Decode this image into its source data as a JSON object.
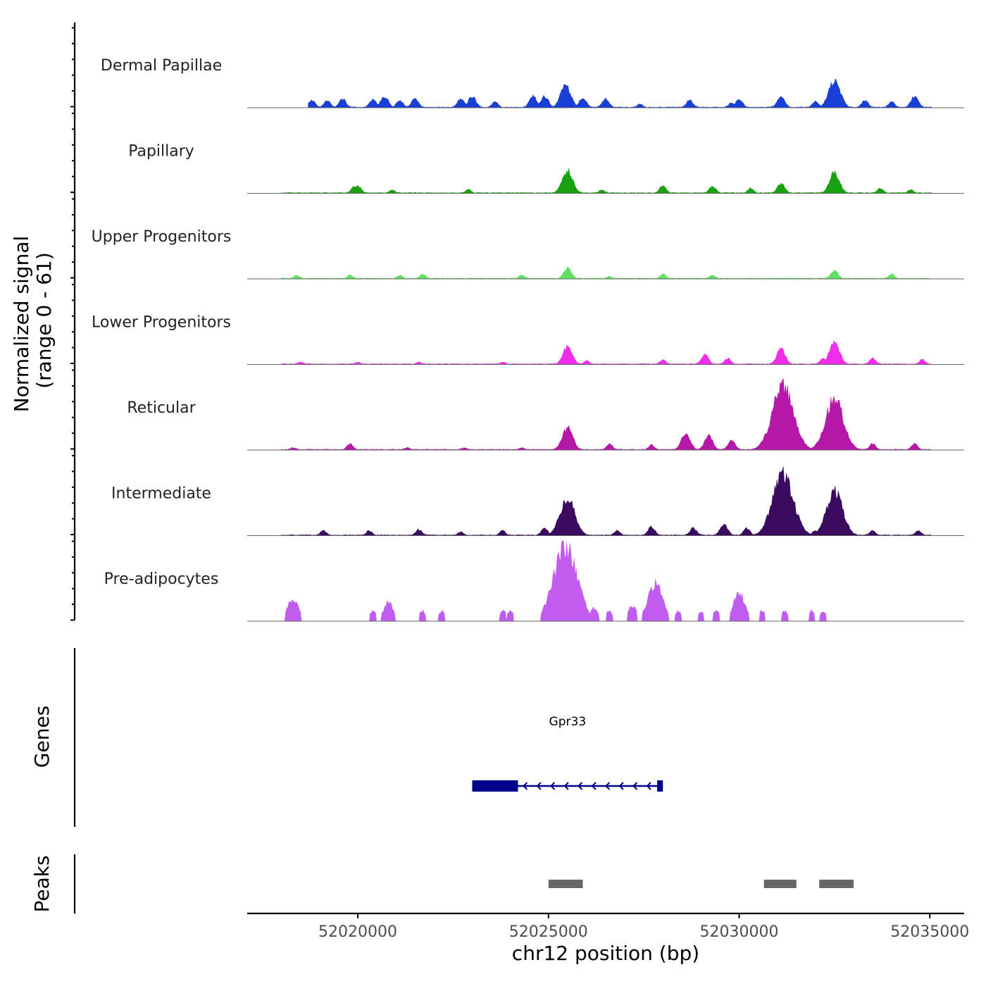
{
  "chart_data": {
    "type": "area",
    "title": "",
    "region": {
      "chromosome": "chr12",
      "start": 52017100,
      "end": 52035900
    },
    "xlabel": "chr12 position (bp)",
    "x_ticks": [
      52020000,
      52025000,
      52030000,
      52035000
    ],
    "x_tick_labels": [
      "52020000",
      "52025000",
      "52030000",
      "52035000"
    ],
    "ylabel_line1": "Normalized signal",
    "ylabel_line2": "(range 0 - 61)",
    "ylim": [
      0,
      61
    ],
    "tracks_label": "Genes",
    "peaks_label": "Peaks",
    "colors": {
      "axis": "#000000",
      "baseline": "#666666",
      "gene": "#00008b",
      "peak": "#666666",
      "label_text": "#222222",
      "tick_text": "#4d4d4d"
    },
    "series": [
      {
        "name": "Dermal Papillae",
        "color": "#1a3fd6",
        "signal_start": 52018700,
        "signal_end": 52035050,
        "peaks": [
          {
            "pos": 52018800,
            "height": 6
          },
          {
            "pos": 52019200,
            "height": 6
          },
          {
            "pos": 52019600,
            "height": 7
          },
          {
            "pos": 52020400,
            "height": 7
          },
          {
            "pos": 52020700,
            "height": 9
          },
          {
            "pos": 52021100,
            "height": 6
          },
          {
            "pos": 52021500,
            "height": 7
          },
          {
            "pos": 52022700,
            "height": 7
          },
          {
            "pos": 52023000,
            "height": 9
          },
          {
            "pos": 52023600,
            "height": 5
          },
          {
            "pos": 52024600,
            "height": 9
          },
          {
            "pos": 52024900,
            "height": 9
          },
          {
            "pos": 52025450,
            "height": 17
          },
          {
            "pos": 52025900,
            "height": 8
          },
          {
            "pos": 52026500,
            "height": 7
          },
          {
            "pos": 52027400,
            "height": 3
          },
          {
            "pos": 52028700,
            "height": 6
          },
          {
            "pos": 52029800,
            "height": 4
          },
          {
            "pos": 52030000,
            "height": 7
          },
          {
            "pos": 52031100,
            "height": 9
          },
          {
            "pos": 52032000,
            "height": 5
          },
          {
            "pos": 52032500,
            "height": 21
          },
          {
            "pos": 52033300,
            "height": 6
          },
          {
            "pos": 52034000,
            "height": 5
          },
          {
            "pos": 52034600,
            "height": 9
          }
        ]
      },
      {
        "name": "Papillary",
        "color": "#19a20f",
        "signal_start": 52018000,
        "signal_end": 52035050,
        "peaks": [
          {
            "pos": 52019900,
            "height": 5
          },
          {
            "pos": 52020000,
            "height": 6
          },
          {
            "pos": 52020900,
            "height": 3
          },
          {
            "pos": 52022900,
            "height": 3
          },
          {
            "pos": 52025500,
            "height": 18
          },
          {
            "pos": 52026400,
            "height": 3
          },
          {
            "pos": 52028000,
            "height": 6
          },
          {
            "pos": 52029300,
            "height": 6
          },
          {
            "pos": 52030300,
            "height": 4
          },
          {
            "pos": 52031100,
            "height": 8
          },
          {
            "pos": 52032500,
            "height": 16
          },
          {
            "pos": 52033700,
            "height": 4
          },
          {
            "pos": 52034500,
            "height": 3
          }
        ]
      },
      {
        "name": "Upper Progenitors",
        "color": "#5fe060",
        "signal_start": 52018000,
        "signal_end": 52035050,
        "peaks": [
          {
            "pos": 52018400,
            "height": 3
          },
          {
            "pos": 52019800,
            "height": 3
          },
          {
            "pos": 52021100,
            "height": 3
          },
          {
            "pos": 52021700,
            "height": 4
          },
          {
            "pos": 52024300,
            "height": 3
          },
          {
            "pos": 52025500,
            "height": 9
          },
          {
            "pos": 52026600,
            "height": 2
          },
          {
            "pos": 52028000,
            "height": 4
          },
          {
            "pos": 52029300,
            "height": 3
          },
          {
            "pos": 52032500,
            "height": 7
          },
          {
            "pos": 52034000,
            "height": 4
          }
        ]
      },
      {
        "name": "Lower Progenitors",
        "color": "#f02ee9",
        "signal_start": 52018000,
        "signal_end": 52035050,
        "peaks": [
          {
            "pos": 52018500,
            "height": 2
          },
          {
            "pos": 52020000,
            "height": 2
          },
          {
            "pos": 52021600,
            "height": 2
          },
          {
            "pos": 52023800,
            "height": 2
          },
          {
            "pos": 52025500,
            "height": 14
          },
          {
            "pos": 52026000,
            "height": 3
          },
          {
            "pos": 52028000,
            "height": 4
          },
          {
            "pos": 52029100,
            "height": 8
          },
          {
            "pos": 52029700,
            "height": 5
          },
          {
            "pos": 52031100,
            "height": 12
          },
          {
            "pos": 52032200,
            "height": 5
          },
          {
            "pos": 52032500,
            "height": 17
          },
          {
            "pos": 52033500,
            "height": 5
          },
          {
            "pos": 52034800,
            "height": 4
          }
        ]
      },
      {
        "name": "Reticular",
        "color": "#b518a8",
        "signal_start": 52018000,
        "signal_end": 52035050,
        "peaks": [
          {
            "pos": 52018300,
            "height": 2
          },
          {
            "pos": 52019800,
            "height": 5
          },
          {
            "pos": 52021300,
            "height": 2
          },
          {
            "pos": 52022800,
            "height": 2
          },
          {
            "pos": 52024300,
            "height": 2
          },
          {
            "pos": 52025500,
            "height": 18
          },
          {
            "pos": 52026600,
            "height": 5
          },
          {
            "pos": 52027700,
            "height": 4
          },
          {
            "pos": 52028600,
            "height": 13
          },
          {
            "pos": 52029200,
            "height": 11
          },
          {
            "pos": 52029800,
            "height": 8
          },
          {
            "pos": 52030800,
            "height": 5
          },
          {
            "pos": 52031150,
            "height": 50
          },
          {
            "pos": 52032200,
            "height": 5
          },
          {
            "pos": 52032500,
            "height": 40
          },
          {
            "pos": 52033500,
            "height": 5
          },
          {
            "pos": 52034600,
            "height": 5
          }
        ]
      },
      {
        "name": "Intermediate",
        "color": "#3a0a5e",
        "signal_start": 52018000,
        "signal_end": 52035050,
        "peaks": [
          {
            "pos": 52019100,
            "height": 4
          },
          {
            "pos": 52020300,
            "height": 4
          },
          {
            "pos": 52021600,
            "height": 5
          },
          {
            "pos": 52022700,
            "height": 3
          },
          {
            "pos": 52023800,
            "height": 4
          },
          {
            "pos": 52024900,
            "height": 6
          },
          {
            "pos": 52025500,
            "height": 30
          },
          {
            "pos": 52026800,
            "height": 4
          },
          {
            "pos": 52027700,
            "height": 7
          },
          {
            "pos": 52028800,
            "height": 6
          },
          {
            "pos": 52029600,
            "height": 9
          },
          {
            "pos": 52030200,
            "height": 6
          },
          {
            "pos": 52031150,
            "height": 48
          },
          {
            "pos": 52032000,
            "height": 4
          },
          {
            "pos": 52032500,
            "height": 35
          },
          {
            "pos": 52033500,
            "height": 4
          },
          {
            "pos": 52034700,
            "height": 4
          }
        ]
      },
      {
        "name": "Pre-adipocytes",
        "color": "#c05cf0",
        "signal_start": 52018000,
        "signal_end": 52033100,
        "peaks": [
          {
            "pos": 52018300,
            "height": 18
          },
          {
            "pos": 52020400,
            "height": 8
          },
          {
            "pos": 52020800,
            "height": 15
          },
          {
            "pos": 52021700,
            "height": 8
          },
          {
            "pos": 52022200,
            "height": 8
          },
          {
            "pos": 52023800,
            "height": 8
          },
          {
            "pos": 52024000,
            "height": 8
          },
          {
            "pos": 52025450,
            "height": 58
          },
          {
            "pos": 52026200,
            "height": 11
          },
          {
            "pos": 52026600,
            "height": 8
          },
          {
            "pos": 52027200,
            "height": 12
          },
          {
            "pos": 52027800,
            "height": 30
          },
          {
            "pos": 52028400,
            "height": 8
          },
          {
            "pos": 52029000,
            "height": 8
          },
          {
            "pos": 52029400,
            "height": 8
          },
          {
            "pos": 52030000,
            "height": 22
          },
          {
            "pos": 52030600,
            "height": 8
          },
          {
            "pos": 52031200,
            "height": 8
          },
          {
            "pos": 52031900,
            "height": 8
          },
          {
            "pos": 52032200,
            "height": 8
          }
        ]
      }
    ],
    "genes": [
      {
        "name": "Gpr33",
        "strand": "-",
        "start": 52023000,
        "end": 52028000,
        "thick_start": 52023000,
        "thick_end": 52024200,
        "exon2_start": 52027850,
        "exon2_end": 52028000
      }
    ],
    "peak_regions": [
      {
        "start": 52025000,
        "end": 52025900
      },
      {
        "start": 52030650,
        "end": 52031500
      },
      {
        "start": 52032100,
        "end": 52033000
      }
    ]
  }
}
